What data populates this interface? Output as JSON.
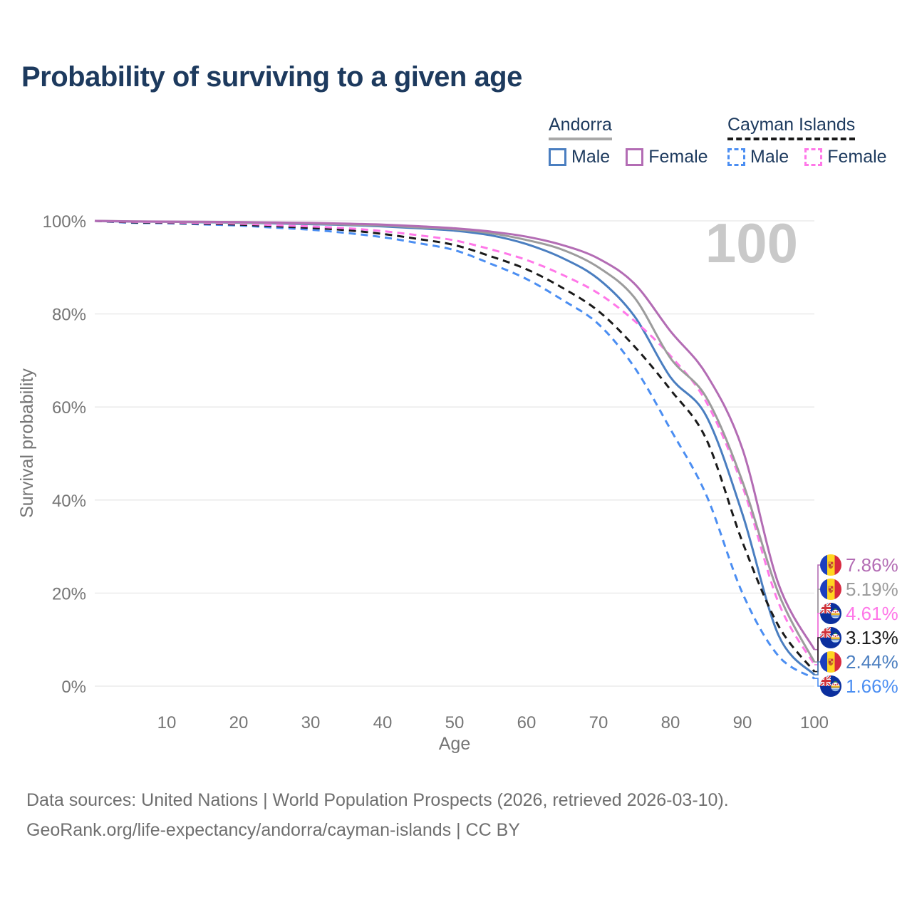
{
  "title": "Probability of surviving to a given age",
  "legend": {
    "groups": [
      {
        "name": "Andorra",
        "line_style": "solid",
        "line_color": "#9c9c9c",
        "items": [
          {
            "label": "Male",
            "color": "#4a7ec0",
            "dashed": false
          },
          {
            "label": "Female",
            "color": "#b36cb4",
            "dashed": false
          }
        ]
      },
      {
        "name": "Cayman Islands",
        "line_style": "dashed",
        "line_color": "#1a1a1a",
        "items": [
          {
            "label": "Male",
            "color": "#4b8ef2",
            "dashed": true
          },
          {
            "label": "Female",
            "color": "#ff77e8",
            "dashed": true
          }
        ]
      }
    ]
  },
  "chart_data": {
    "type": "line",
    "title": "Probability of surviving to a given age",
    "xlabel": "Age",
    "ylabel": "Survival probability",
    "xlim": [
      0,
      100
    ],
    "ylim": [
      0,
      100
    ],
    "x_ticks": [
      10,
      20,
      30,
      40,
      50,
      60,
      70,
      80,
      90,
      100
    ],
    "y_ticks": [
      0,
      20,
      40,
      60,
      80,
      100
    ],
    "y_tick_suffix": "%",
    "age_marker": "100",
    "grid": "horizontal",
    "legend_position": "top-right",
    "x": [
      0,
      5,
      10,
      15,
      20,
      25,
      30,
      35,
      40,
      45,
      50,
      55,
      60,
      65,
      70,
      75,
      80,
      85,
      90,
      95,
      100
    ],
    "series": [
      {
        "id": "andorra-female",
        "name": "Andorra Female",
        "color": "#b36cb4",
        "dashed": false,
        "flag": "andorra",
        "end_label": "7.86%",
        "values": [
          100,
          99.9,
          99.85,
          99.8,
          99.75,
          99.65,
          99.55,
          99.4,
          99.2,
          98.85,
          98.4,
          97.7,
          96.6,
          94.8,
          91.9,
          86.5,
          76.3,
          67,
          51,
          22,
          7.86
        ]
      },
      {
        "id": "andorra-all",
        "name": "Andorra",
        "color": "#9c9c9c",
        "dashed": false,
        "flag": "andorra",
        "end_label": "5.19%",
        "values": [
          100,
          99.9,
          99.8,
          99.75,
          99.65,
          99.55,
          99.4,
          99.2,
          99,
          98.6,
          98.2,
          97.35,
          95.9,
          93.8,
          90,
          83.5,
          70.5,
          62,
          44,
          20,
          5.19
        ]
      },
      {
        "id": "cayman-female",
        "name": "Cayman Islands Female",
        "color": "#ff77e8",
        "dashed": true,
        "flag": "cayman",
        "end_label": "4.61%",
        "values": [
          100,
          99.8,
          99.7,
          99.55,
          99.4,
          99.1,
          98.8,
          98.4,
          97.8,
          96.9,
          95.8,
          93.9,
          91.6,
          88.4,
          84.4,
          78.5,
          71,
          61,
          43,
          18,
          4.61
        ]
      },
      {
        "id": "cayman-all",
        "name": "Cayman Islands",
        "color": "#1a1a1a",
        "dashed": true,
        "flag": "cayman",
        "end_label": "3.13%",
        "values": [
          100,
          99.7,
          99.6,
          99.4,
          99.2,
          98.85,
          98.5,
          98,
          97.2,
          96.1,
          94.8,
          92.4,
          89.6,
          85.6,
          80.6,
          73,
          63.7,
          53,
          31,
          13,
          3.13
        ]
      },
      {
        "id": "andorra-male",
        "name": "Andorra Male",
        "color": "#4a7ec0",
        "dashed": false,
        "flag": "andorra",
        "end_label": "2.44%",
        "values": [
          100,
          99.85,
          99.8,
          99.7,
          99.6,
          99.45,
          99.3,
          99.1,
          98.8,
          98.4,
          97.9,
          96.9,
          95,
          92,
          87.5,
          79.5,
          66.4,
          58,
          37,
          11,
          2.44
        ]
      },
      {
        "id": "cayman-male",
        "name": "Cayman Islands Male",
        "color": "#4b8ef2",
        "dashed": true,
        "flag": "cayman",
        "end_label": "1.66%",
        "values": [
          100,
          99.6,
          99.5,
          99.25,
          99,
          98.55,
          98.1,
          97.4,
          96.5,
          95.2,
          93.7,
          90.8,
          87.5,
          83,
          77.8,
          68.5,
          55.2,
          41,
          20,
          6.5,
          1.66
        ]
      }
    ]
  },
  "footer": {
    "line1": "Data sources: United Nations | World Population Prospects (2026, retrieved 2026-03-10).",
    "line2": "GeoRank.org/life-expectancy/andorra/cayman-islands | CC BY"
  }
}
